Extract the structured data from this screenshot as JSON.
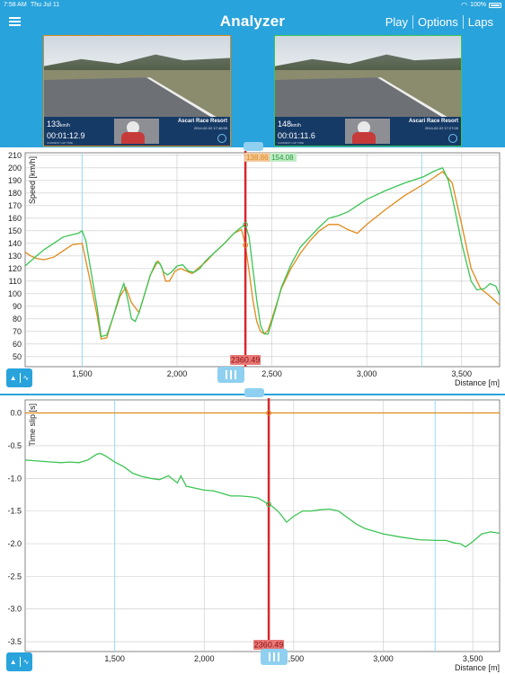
{
  "status_bar": {
    "time": "7:58 AM",
    "date": "Thu Jul 11",
    "battery": "100%"
  },
  "nav": {
    "title": "Analyzer",
    "actions": [
      "Play",
      "Options",
      "Laps"
    ]
  },
  "videos": [
    {
      "speed": "133",
      "speed_unit": "km/h",
      "lap_time": "00:01:12.9",
      "track": "Ascari Race Resort",
      "timestamp": "2014-02-02 17:46:55",
      "sublabel": "CURRENT LAP TIME",
      "accent": "#e08a1a"
    },
    {
      "speed": "148",
      "speed_unit": "km/h",
      "lap_time": "00:01:11.6",
      "track": "Ascari Race Resort",
      "timestamp": "2014-02-02 17:27:00",
      "sublabel": "CURRENT LAP TIME",
      "accent": "#3cc454"
    }
  ],
  "colors": {
    "accent": "#29a3dc",
    "lap_a": "#e08a1a",
    "lap_b": "#3cc454",
    "cursor": "#d8262b",
    "highlight": "#9adcf5"
  },
  "cursor": {
    "distance": 2360.49,
    "label": "2360.49",
    "speed_a_label": "138.86",
    "speed_b_label": "154.08"
  },
  "chart_data": [
    {
      "type": "line",
      "ylabel": "Speed [km/h]",
      "xlabel": "Distance [m]",
      "xlim": [
        1200,
        3700
      ],
      "ylim": [
        42,
        212
      ],
      "xticks": [
        1500,
        2000,
        2500,
        3000,
        3500
      ],
      "xtick_labels": [
        "1,500",
        "2,000",
        "2,500",
        "3,000",
        "3,500"
      ],
      "yticks": [
        50,
        60,
        70,
        80,
        90,
        100,
        110,
        120,
        130,
        140,
        150,
        160,
        170,
        180,
        190,
        200,
        210
      ],
      "highlight_x": [
        1500,
        3290
      ],
      "grid": true,
      "series": [
        {
          "color": "#e08a1a",
          "x": [
            1200,
            1230,
            1260,
            1300,
            1350,
            1400,
            1450,
            1500,
            1540,
            1580,
            1600,
            1630,
            1660,
            1700,
            1730,
            1760,
            1800,
            1830,
            1860,
            1900,
            1920,
            1940,
            1960,
            1990,
            2020,
            2050,
            2080,
            2110,
            2150,
            2200,
            2250,
            2300,
            2340,
            2360,
            2380,
            2400,
            2420,
            2440,
            2460,
            2480,
            2500,
            2550,
            2600,
            2650,
            2700,
            2750,
            2800,
            2850,
            2900,
            2950,
            3000,
            3100,
            3200,
            3300,
            3350,
            3400,
            3450,
            3500,
            3550,
            3600,
            3650,
            3700
          ],
          "values": [
            133,
            130,
            128,
            127,
            129,
            134,
            139,
            140,
            112,
            82,
            64,
            65,
            80,
            98,
            105,
            93,
            85,
            100,
            115,
            126,
            121,
            110,
            110,
            118,
            120,
            118,
            116,
            120,
            125,
            133,
            140,
            148,
            151,
            139,
            118,
            95,
            78,
            70,
            68,
            71,
            80,
            104,
            120,
            132,
            142,
            150,
            155,
            155,
            151,
            148,
            155,
            167,
            178,
            187,
            192,
            197,
            188,
            155,
            120,
            104,
            98,
            91
          ]
        },
        {
          "color": "#3cc454",
          "x": [
            1200,
            1230,
            1260,
            1300,
            1350,
            1400,
            1450,
            1480,
            1500,
            1520,
            1550,
            1580,
            1600,
            1630,
            1660,
            1700,
            1720,
            1740,
            1760,
            1780,
            1800,
            1830,
            1860,
            1890,
            1910,
            1930,
            1950,
            1970,
            2000,
            2030,
            2060,
            2090,
            2120,
            2150,
            2200,
            2250,
            2300,
            2340,
            2360,
            2380,
            2400,
            2420,
            2440,
            2460,
            2480,
            2500,
            2520,
            2550,
            2600,
            2650,
            2700,
            2750,
            2800,
            2850,
            2900,
            2950,
            3000,
            3100,
            3200,
            3300,
            3350,
            3380,
            3400,
            3430,
            3460,
            3500,
            3530,
            3550,
            3580,
            3620,
            3650,
            3680,
            3700
          ],
          "values": [
            122,
            126,
            130,
            135,
            140,
            145,
            147,
            148,
            150,
            142,
            115,
            88,
            66,
            67,
            80,
            100,
            108,
            96,
            80,
            78,
            85,
            100,
            115,
            125,
            124,
            117,
            115,
            117,
            122,
            123,
            118,
            117,
            120,
            126,
            133,
            140,
            148,
            153,
            155,
            145,
            120,
            95,
            75,
            68,
            68,
            78,
            88,
            105,
            123,
            137,
            145,
            153,
            160,
            162,
            165,
            170,
            175,
            182,
            188,
            193,
            197,
            199,
            200,
            190,
            170,
            140,
            122,
            110,
            103,
            104,
            108,
            106,
            99
          ]
        }
      ]
    },
    {
      "type": "line",
      "ylabel": "Time slip [s]",
      "xlabel": "Distance [m]",
      "xlim": [
        1000,
        3650
      ],
      "ylim": [
        -3.65,
        0.2
      ],
      "xticks": [
        1500,
        2000,
        2500,
        3000,
        3500
      ],
      "xtick_labels": [
        "1,500",
        "2,000",
        "2,500",
        "3,000",
        "3,500"
      ],
      "yticks": [
        0.0,
        -0.5,
        -1.0,
        -1.5,
        -2.0,
        -2.5,
        -3.0,
        -3.5
      ],
      "ytick_labels": [
        "0.0",
        "-0.5",
        "-1.0",
        "-1.5",
        "-2.0",
        "-2.5",
        "-3.0",
        "-3.5"
      ],
      "highlight_x": [
        1500,
        3290
      ],
      "grid": true,
      "series": [
        {
          "color": "#e08a1a",
          "x": [
            1000,
            3650
          ],
          "values": [
            0,
            0
          ]
        },
        {
          "color": "#3cc454",
          "x": [
            1000,
            1050,
            1100,
            1150,
            1200,
            1250,
            1300,
            1350,
            1400,
            1420,
            1450,
            1500,
            1550,
            1600,
            1650,
            1700,
            1750,
            1800,
            1850,
            1870,
            1900,
            1950,
            2000,
            2050,
            2100,
            2150,
            2200,
            2250,
            2300,
            2350,
            2380,
            2410,
            2430,
            2460,
            2500,
            2550,
            2600,
            2650,
            2700,
            2750,
            2800,
            2850,
            2900,
            3000,
            3100,
            3200,
            3300,
            3350,
            3400,
            3430,
            3460,
            3500,
            3550,
            3600,
            3650
          ],
          "values": [
            -0.72,
            -0.73,
            -0.74,
            -0.75,
            -0.76,
            -0.75,
            -0.76,
            -0.72,
            -0.63,
            -0.62,
            -0.66,
            -0.75,
            -0.82,
            -0.92,
            -0.97,
            -1.0,
            -1.02,
            -0.96,
            -1.07,
            -0.96,
            -1.12,
            -1.15,
            -1.18,
            -1.19,
            -1.23,
            -1.27,
            -1.27,
            -1.28,
            -1.3,
            -1.38,
            -1.43,
            -1.5,
            -1.56,
            -1.67,
            -1.58,
            -1.5,
            -1.5,
            -1.48,
            -1.47,
            -1.5,
            -1.6,
            -1.7,
            -1.77,
            -1.85,
            -1.9,
            -1.94,
            -1.95,
            -1.95,
            -1.99,
            -2.0,
            -2.05,
            -1.97,
            -1.85,
            -1.82,
            -1.84
          ]
        }
      ]
    }
  ]
}
